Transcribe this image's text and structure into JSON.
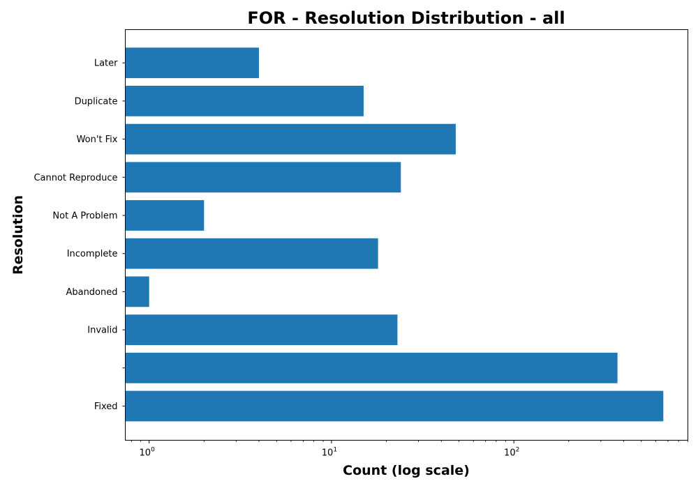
{
  "chart_data": {
    "type": "bar",
    "orientation": "horizontal",
    "title": "FOR - Resolution Distribution - all",
    "xlabel": "Count (log scale)",
    "ylabel": "Resolution",
    "x_scale": "log",
    "xlim": [
      0.74,
      900
    ],
    "x_ticks": [
      {
        "value": 1,
        "base": "10",
        "exp": "0"
      },
      {
        "value": 10,
        "base": "10",
        "exp": "1"
      },
      {
        "value": 100,
        "base": "10",
        "exp": "2"
      }
    ],
    "categories": [
      "Fixed",
      "",
      "Invalid",
      "Abandoned",
      "Incomplete",
      "Not A Problem",
      "Cannot Reproduce",
      "Won't Fix",
      "Duplicate",
      "Later"
    ],
    "values": [
      660,
      370,
      23,
      1,
      18,
      2,
      24,
      48,
      15,
      4
    ],
    "bar_color": "#1f77b4",
    "grid": false,
    "legend": "none"
  }
}
